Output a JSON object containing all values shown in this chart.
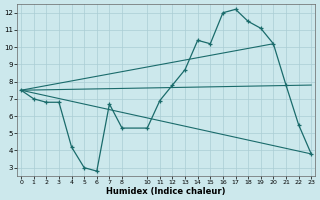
{
  "xlabel": "Humidex (Indice chaleur)",
  "bg_color": "#cce8ec",
  "grid_color": "#aacdd4",
  "line_color": "#1a6b6b",
  "line1_x": [
    0,
    1,
    2,
    3,
    4,
    5,
    6,
    7,
    8,
    10,
    11,
    12,
    13,
    14,
    15,
    16,
    17,
    18,
    19,
    20,
    21,
    22,
    23
  ],
  "line1_y": [
    7.5,
    7.0,
    6.8,
    6.8,
    4.2,
    3.0,
    2.8,
    6.7,
    5.3,
    5.3,
    6.9,
    7.8,
    8.7,
    10.4,
    10.2,
    12.0,
    12.2,
    11.5,
    11.1,
    10.2,
    7.8,
    5.5,
    3.8
  ],
  "line2_x": [
    0,
    20
  ],
  "line2_y": [
    7.5,
    10.2
  ],
  "line3_x": [
    0,
    23
  ],
  "line3_y": [
    7.5,
    7.8
  ],
  "line4_x": [
    0,
    23
  ],
  "line4_y": [
    7.5,
    3.8
  ],
  "xlim": [
    -0.3,
    23.3
  ],
  "ylim": [
    2.5,
    12.5
  ],
  "yticks": [
    3,
    4,
    5,
    6,
    7,
    8,
    9,
    10,
    11,
    12
  ],
  "xticks": [
    0,
    1,
    2,
    3,
    4,
    5,
    6,
    7,
    8,
    10,
    11,
    12,
    13,
    14,
    15,
    16,
    17,
    18,
    19,
    20,
    21,
    22,
    23
  ]
}
